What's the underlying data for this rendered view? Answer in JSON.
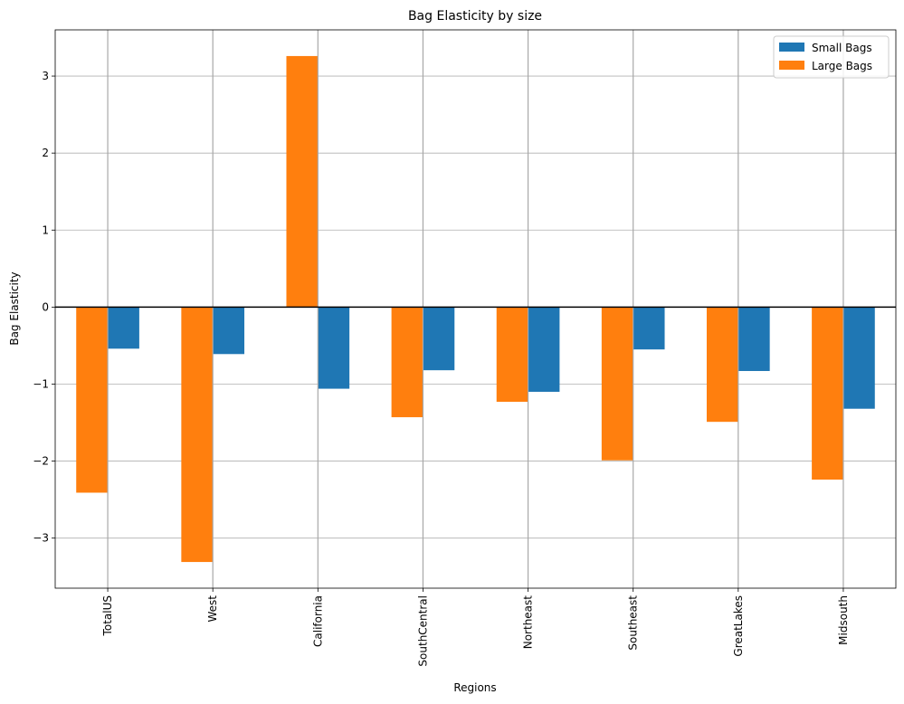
{
  "chart_data": {
    "type": "bar",
    "title": "Bag Elasticity by size",
    "xlabel": "Regions",
    "ylabel": "Bag Elasticity",
    "categories": [
      "TotalUS",
      "West",
      "California",
      "SouthCentral",
      "Northeast",
      "Southeast",
      "GreatLakes",
      "Midsouth"
    ],
    "series": [
      {
        "name": "Small Bags",
        "color": "#1f77b4",
        "values": [
          -0.54,
          -0.61,
          -1.06,
          -0.82,
          -1.1,
          -0.55,
          -0.83,
          -1.32
        ]
      },
      {
        "name": "Large Bags",
        "color": "#ff7f0e",
        "values": [
          -2.41,
          -3.31,
          3.26,
          -1.43,
          -1.23,
          -1.99,
          -1.49,
          -2.24
        ]
      }
    ],
    "ylim": [
      -3.65,
      3.6
    ],
    "yticks": [
      3,
      2,
      1,
      0,
      -1,
      -2,
      -3
    ],
    "ytick_labels": [
      "3",
      "2",
      "1",
      "0",
      "−1",
      "−2",
      "−3"
    ],
    "grid": true,
    "zero_line": true,
    "legend_position": "top-right",
    "tick_label_rotation": "vertical"
  }
}
